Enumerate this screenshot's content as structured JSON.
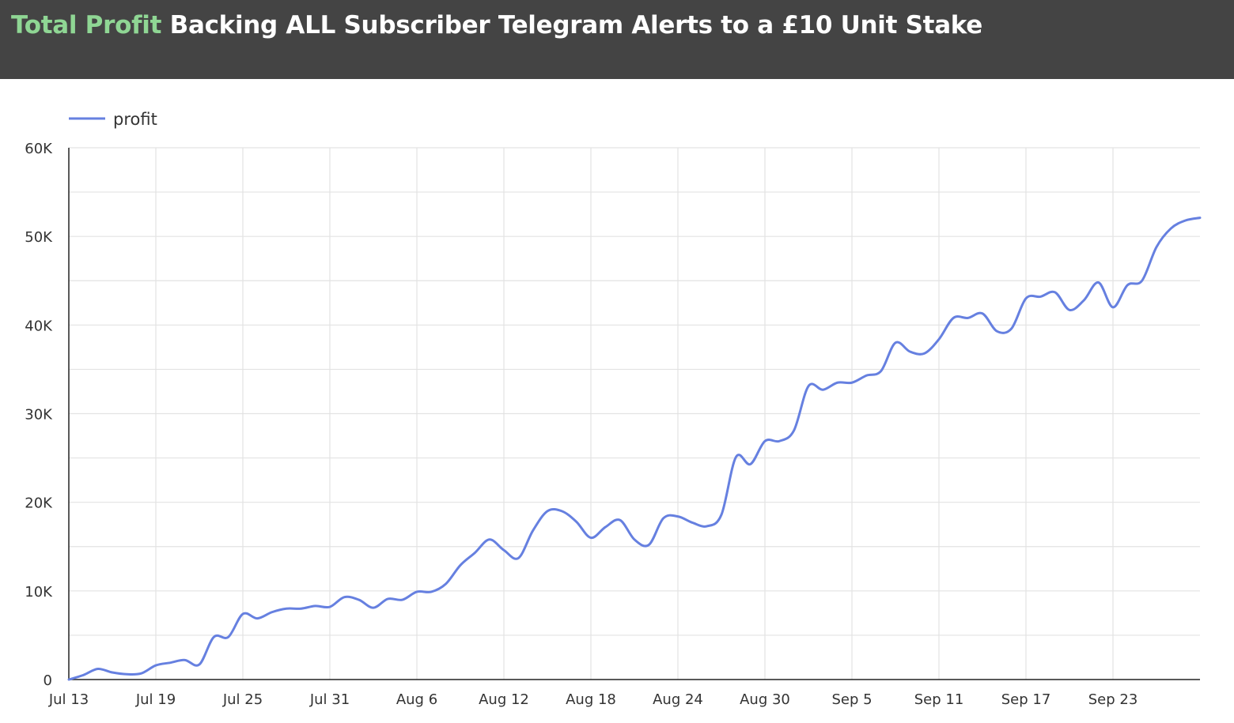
{
  "header": {
    "title_accent": "Total Profit",
    "title_rest": " Backing ALL Subscriber Telegram Alerts to a £10 Unit Stake",
    "background_color": "#444444",
    "accent_color": "#8fd694"
  },
  "chart_data": {
    "type": "line",
    "title": "Total Profit Backing ALL Subscriber Telegram Alerts to a £10 Unit Stake",
    "xlabel": "",
    "ylabel": "",
    "ylim": [
      0,
      60000
    ],
    "xlim": [
      "Jul 13",
      "Sep 29"
    ],
    "grid": true,
    "legend_position": "top-left",
    "y_ticks": [
      0,
      10000,
      20000,
      30000,
      40000,
      50000,
      60000
    ],
    "y_tick_labels": [
      "0",
      "10K",
      "20K",
      "30K",
      "40K",
      "50K",
      "60K"
    ],
    "x_tick_labels": [
      "Jul 13",
      "Jul 19",
      "Jul 25",
      "Jul 31",
      "Aug 6",
      "Aug 12",
      "Aug 18",
      "Aug 24",
      "Aug 30",
      "Sep 5",
      "Sep 11",
      "Sep 17",
      "Sep 23"
    ],
    "x": [
      "Jul 13",
      "Jul 14",
      "Jul 15",
      "Jul 16",
      "Jul 17",
      "Jul 18",
      "Jul 19",
      "Jul 20",
      "Jul 21",
      "Jul 22",
      "Jul 23",
      "Jul 24",
      "Jul 25",
      "Jul 26",
      "Jul 27",
      "Jul 28",
      "Jul 29",
      "Jul 30",
      "Jul 31",
      "Aug 1",
      "Aug 2",
      "Aug 3",
      "Aug 4",
      "Aug 5",
      "Aug 6",
      "Aug 7",
      "Aug 8",
      "Aug 9",
      "Aug 10",
      "Aug 11",
      "Aug 12",
      "Aug 13",
      "Aug 14",
      "Aug 15",
      "Aug 16",
      "Aug 17",
      "Aug 18",
      "Aug 19",
      "Aug 20",
      "Aug 21",
      "Aug 22",
      "Aug 23",
      "Aug 24",
      "Aug 25",
      "Aug 26",
      "Aug 27",
      "Aug 28",
      "Aug 29",
      "Aug 30",
      "Aug 31",
      "Sep 1",
      "Sep 2",
      "Sep 3",
      "Sep 4",
      "Sep 5",
      "Sep 6",
      "Sep 7",
      "Sep 8",
      "Sep 9",
      "Sep 10",
      "Sep 11",
      "Sep 12",
      "Sep 13",
      "Sep 14",
      "Sep 15",
      "Sep 16",
      "Sep 17",
      "Sep 18",
      "Sep 19",
      "Sep 20",
      "Sep 21",
      "Sep 22",
      "Sep 23",
      "Sep 24",
      "Sep 25",
      "Sep 26",
      "Sep 27",
      "Sep 28",
      "Sep 29"
    ],
    "series": [
      {
        "name": "profit",
        "color": "#6680e0",
        "values": [
          0,
          500,
          1200,
          800,
          600,
          700,
          1600,
          1900,
          2200,
          1700,
          4800,
          4800,
          7400,
          6900,
          7600,
          8000,
          8000,
          8300,
          8200,
          9300,
          9000,
          8100,
          9100,
          9000,
          9900,
          9900,
          10800,
          12900,
          14300,
          15800,
          14600,
          13700,
          16800,
          19000,
          19000,
          17800,
          16000,
          17200,
          18000,
          15800,
          15200,
          18200,
          18400,
          17700,
          17300,
          18600,
          25100,
          24300,
          26900,
          26900,
          28100,
          33100,
          32700,
          33500,
          33500,
          34300,
          34800,
          38000,
          37000,
          36800,
          38400,
          40800,
          40800,
          41300,
          39300,
          39600,
          43000,
          43200,
          43700,
          41700,
          42800,
          44800,
          42000,
          44500,
          45000,
          48800,
          50900,
          51800,
          52100
        ]
      }
    ]
  }
}
